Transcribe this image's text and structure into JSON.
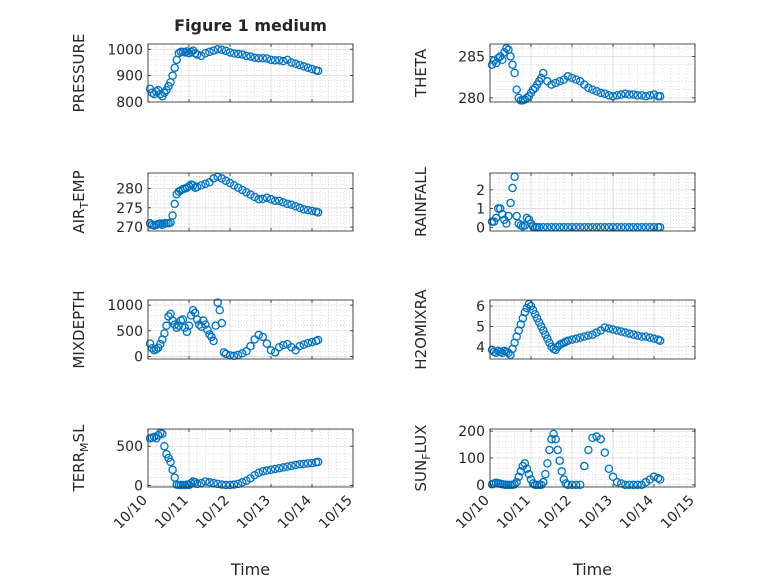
{
  "chart_data": [
    {
      "type": "scatter",
      "title": "Figure 1 medium",
      "ylabel": "PRESSURE",
      "xlabel": "",
      "xlim": [
        0,
        5
      ],
      "ylim": [
        800,
        1020
      ],
      "yticks": [
        800,
        900,
        1000
      ],
      "xticks": [
        0,
        1,
        2,
        3,
        4,
        5
      ],
      "grid": true,
      "minor_grid": true,
      "marker_color": "#0072BD",
      "x": [
        0.05,
        0.1,
        0.15,
        0.2,
        0.25,
        0.3,
        0.35,
        0.4,
        0.45,
        0.5,
        0.55,
        0.6,
        0.65,
        0.7,
        0.75,
        0.8,
        0.85,
        0.9,
        0.95,
        1.0,
        1.05,
        1.1,
        1.15,
        1.2,
        1.3,
        1.4,
        1.5,
        1.6,
        1.7,
        1.8,
        1.9,
        2.0,
        2.1,
        2.2,
        2.3,
        2.4,
        2.5,
        2.6,
        2.7,
        2.8,
        2.9,
        3.0,
        3.1,
        3.2,
        3.3,
        3.4,
        3.5,
        3.6,
        3.7,
        3.8,
        3.9,
        4.0,
        4.1,
        4.15
      ],
      "y": [
        850,
        835,
        830,
        840,
        845,
        830,
        822,
        835,
        845,
        860,
        875,
        900,
        930,
        960,
        985,
        990,
        990,
        988,
        992,
        985,
        990,
        995,
        985,
        980,
        975,
        985,
        990,
        995,
        1000,
        998,
        994,
        988,
        984,
        982,
        980,
        975,
        972,
        968,
        966,
        966,
        965,
        960,
        958,
        958,
        955,
        960,
        950,
        945,
        940,
        935,
        930,
        925,
        920,
        918
      ]
    },
    {
      "type": "scatter",
      "title": "",
      "ylabel": "THETA",
      "xlabel": "",
      "xlim": [
        0,
        5
      ],
      "ylim": [
        279.5,
        286.5
      ],
      "yticks": [
        280,
        285
      ],
      "xticks": [
        0,
        1,
        2,
        3,
        4,
        5
      ],
      "grid": true,
      "minor_grid": true,
      "marker_color": "#0072BD",
      "x": [
        0.05,
        0.1,
        0.15,
        0.2,
        0.25,
        0.3,
        0.35,
        0.4,
        0.45,
        0.5,
        0.55,
        0.6,
        0.65,
        0.7,
        0.75,
        0.8,
        0.85,
        0.9,
        0.95,
        1.0,
        1.05,
        1.1,
        1.15,
        1.2,
        1.25,
        1.3,
        1.4,
        1.5,
        1.6,
        1.7,
        1.8,
        1.9,
        2.0,
        2.1,
        2.2,
        2.3,
        2.4,
        2.5,
        2.6,
        2.7,
        2.8,
        2.9,
        3.0,
        3.1,
        3.2,
        3.3,
        3.4,
        3.5,
        3.6,
        3.7,
        3.8,
        3.9,
        4.0,
        4.1,
        4.15
      ],
      "y": [
        284,
        284.5,
        284.2,
        284.8,
        285,
        284.6,
        285.5,
        286,
        285.8,
        285,
        284,
        283,
        281,
        280,
        279.7,
        279.7,
        279.8,
        280,
        280.2,
        280.6,
        281,
        281.2,
        281.6,
        282,
        282.4,
        283,
        282,
        281.6,
        281.8,
        282,
        282.2,
        282.6,
        282.4,
        282.2,
        282,
        281.6,
        281.2,
        281,
        280.8,
        280.6,
        280.5,
        280.3,
        280.2,
        280.3,
        280.4,
        280.5,
        280.4,
        280.4,
        280.3,
        280.3,
        280.2,
        280.3,
        280.4,
        280.2,
        280.2
      ]
    },
    {
      "type": "scatter",
      "title": "",
      "ylabel": "AIR_TEMP",
      "xlabel": "",
      "xlim": [
        0,
        5
      ],
      "ylim": [
        269,
        284
      ],
      "yticks": [
        270,
        275,
        280
      ],
      "xticks": [
        0,
        1,
        2,
        3,
        4,
        5
      ],
      "grid": true,
      "minor_grid": true,
      "marker_color": "#0072BD",
      "x": [
        0.05,
        0.1,
        0.15,
        0.2,
        0.25,
        0.3,
        0.35,
        0.4,
        0.45,
        0.5,
        0.55,
        0.6,
        0.65,
        0.7,
        0.75,
        0.8,
        0.85,
        0.9,
        0.95,
        1.0,
        1.05,
        1.1,
        1.15,
        1.2,
        1.3,
        1.4,
        1.5,
        1.6,
        1.7,
        1.8,
        1.9,
        2.0,
        2.1,
        2.2,
        2.3,
        2.4,
        2.5,
        2.6,
        2.7,
        2.8,
        2.9,
        3.0,
        3.1,
        3.2,
        3.3,
        3.4,
        3.5,
        3.6,
        3.7,
        3.8,
        3.9,
        4.0,
        4.1,
        4.15
      ],
      "y": [
        271,
        270.6,
        270.4,
        270.6,
        270.8,
        270.9,
        270.6,
        271,
        271,
        271,
        271.2,
        273,
        276,
        278.5,
        279.2,
        279.5,
        279.8,
        280,
        280.2,
        280.6,
        281,
        280.8,
        280.2,
        280.4,
        280.8,
        281.2,
        281.6,
        282.6,
        283,
        282.6,
        282,
        281.4,
        280.8,
        280.2,
        279.6,
        279,
        278.4,
        277.8,
        277.2,
        277.3,
        277.6,
        277.2,
        276.8,
        276.8,
        276.4,
        276,
        275.8,
        275.4,
        275,
        274.6,
        274.4,
        274.2,
        274,
        273.8
      ]
    },
    {
      "type": "scatter",
      "title": "",
      "ylabel": "RAINFALL",
      "xlabel": "",
      "xlim": [
        0,
        5
      ],
      "ylim": [
        -0.2,
        2.9
      ],
      "yticks": [
        0,
        1,
        2
      ],
      "xticks": [
        0,
        1,
        2,
        3,
        4,
        5
      ],
      "grid": true,
      "minor_grid": true,
      "marker_color": "#0072BD",
      "x": [
        0.05,
        0.1,
        0.15,
        0.2,
        0.25,
        0.3,
        0.35,
        0.4,
        0.45,
        0.5,
        0.55,
        0.6,
        0.65,
        0.7,
        0.75,
        0.8,
        0.85,
        0.9,
        0.95,
        1.0,
        1.05,
        1.1,
        1.15,
        1.2,
        1.3,
        1.4,
        1.5,
        1.6,
        1.7,
        1.8,
        1.9,
        2.0,
        2.1,
        2.2,
        2.3,
        2.4,
        2.5,
        2.6,
        2.7,
        2.8,
        2.9,
        3.0,
        3.1,
        3.2,
        3.3,
        3.4,
        3.5,
        3.6,
        3.7,
        3.8,
        3.9,
        4.0,
        4.1,
        4.15
      ],
      "y": [
        0.3,
        0.3,
        0.5,
        1.0,
        1.0,
        0.7,
        0.4,
        0.2,
        0.6,
        1.3,
        2.1,
        2.7,
        0.6,
        0.2,
        0.1,
        0.05,
        0.1,
        0.5,
        0.4,
        0.2,
        0.05,
        0,
        0,
        0,
        0,
        0,
        0,
        0,
        0,
        0,
        0,
        0,
        0,
        0,
        0,
        0,
        0,
        0,
        0,
        0,
        0,
        0,
        0,
        0,
        0,
        0,
        0,
        0,
        0,
        0,
        0,
        0,
        0,
        0
      ]
    },
    {
      "type": "scatter",
      "title": "",
      "ylabel": "MIXDEPTH",
      "xlabel": "",
      "xlim": [
        0,
        5
      ],
      "ylim": [
        -50,
        1100
      ],
      "yticks": [
        0,
        500,
        1000
      ],
      "xticks": [
        0,
        1,
        2,
        3,
        4,
        5
      ],
      "grid": true,
      "minor_grid": true,
      "marker_color": "#0072BD",
      "x": [
        0.05,
        0.1,
        0.15,
        0.2,
        0.25,
        0.3,
        0.35,
        0.4,
        0.45,
        0.5,
        0.55,
        0.6,
        0.65,
        0.7,
        0.75,
        0.8,
        0.85,
        0.9,
        0.95,
        1.0,
        1.05,
        1.1,
        1.15,
        1.2,
        1.25,
        1.3,
        1.35,
        1.4,
        1.45,
        1.5,
        1.55,
        1.6,
        1.65,
        1.7,
        1.75,
        1.8,
        1.85,
        1.9,
        2.0,
        2.1,
        2.2,
        2.3,
        2.4,
        2.5,
        2.6,
        2.7,
        2.8,
        2.9,
        3.0,
        3.1,
        3.2,
        3.3,
        3.4,
        3.5,
        3.6,
        3.7,
        3.8,
        3.9,
        4.0,
        4.1,
        4.15
      ],
      "y": [
        250,
        160,
        120,
        140,
        170,
        240,
        330,
        450,
        600,
        780,
        830,
        700,
        620,
        560,
        600,
        700,
        720,
        560,
        480,
        600,
        800,
        900,
        850,
        720,
        620,
        580,
        700,
        620,
        520,
        430,
        380,
        300,
        600,
        1050,
        900,
        650,
        80,
        50,
        20,
        10,
        30,
        60,
        100,
        200,
        330,
        420,
        380,
        250,
        120,
        80,
        180,
        220,
        240,
        180,
        120,
        200,
        230,
        260,
        280,
        300,
        320
      ]
    },
    {
      "type": "scatter",
      "title": "",
      "ylabel": "H2OMIXRA",
      "xlabel": "",
      "xlim": [
        0,
        5
      ],
      "ylim": [
        3.4,
        6.3
      ],
      "yticks": [
        4,
        5,
        6
      ],
      "xticks": [
        0,
        1,
        2,
        3,
        4,
        5
      ],
      "grid": true,
      "minor_grid": true,
      "marker_color": "#0072BD",
      "x": [
        0.05,
        0.1,
        0.15,
        0.2,
        0.25,
        0.3,
        0.35,
        0.4,
        0.45,
        0.5,
        0.55,
        0.6,
        0.65,
        0.7,
        0.75,
        0.8,
        0.85,
        0.9,
        0.95,
        1.0,
        1.05,
        1.1,
        1.15,
        1.2,
        1.25,
        1.3,
        1.35,
        1.4,
        1.45,
        1.5,
        1.55,
        1.6,
        1.65,
        1.7,
        1.75,
        1.8,
        1.85,
        1.9,
        2.0,
        2.1,
        2.2,
        2.3,
        2.4,
        2.5,
        2.6,
        2.7,
        2.8,
        2.9,
        3.0,
        3.1,
        3.2,
        3.3,
        3.4,
        3.5,
        3.6,
        3.7,
        3.8,
        3.9,
        4.0,
        4.1,
        4.15
      ],
      "y": [
        3.85,
        3.75,
        3.7,
        3.8,
        3.75,
        3.7,
        3.8,
        3.75,
        3.7,
        3.6,
        3.9,
        4.2,
        4.5,
        4.8,
        5.1,
        5.4,
        5.7,
        5.9,
        6.1,
        6.0,
        5.8,
        5.6,
        5.4,
        5.2,
        5.0,
        4.8,
        4.6,
        4.4,
        4.2,
        4.0,
        3.9,
        3.85,
        4.0,
        4.1,
        4.15,
        4.2,
        4.25,
        4.3,
        4.35,
        4.4,
        4.45,
        4.5,
        4.55,
        4.6,
        4.7,
        4.8,
        4.95,
        4.9,
        4.85,
        4.8,
        4.75,
        4.7,
        4.65,
        4.6,
        4.55,
        4.5,
        4.5,
        4.45,
        4.4,
        4.35,
        4.3
      ]
    },
    {
      "type": "scatter",
      "title": "",
      "ylabel": "TERR_MSL",
      "xlabel": "Time",
      "xlim": [
        0,
        5
      ],
      "ylim": [
        -20,
        720
      ],
      "yticks": [
        0,
        500
      ],
      "xticks": [
        0,
        1,
        2,
        3,
        4,
        5
      ],
      "xticklabels": [
        "10/10",
        "10/11",
        "10/12",
        "10/13",
        "10/14",
        "10/15"
      ],
      "grid": true,
      "minor_grid": true,
      "marker_color": "#0072BD",
      "x": [
        0.05,
        0.1,
        0.15,
        0.2,
        0.25,
        0.3,
        0.35,
        0.4,
        0.45,
        0.5,
        0.55,
        0.6,
        0.65,
        0.7,
        0.75,
        0.8,
        0.85,
        0.9,
        0.95,
        1.0,
        1.05,
        1.1,
        1.15,
        1.2,
        1.3,
        1.4,
        1.5,
        1.6,
        1.7,
        1.8,
        1.9,
        2.0,
        2.1,
        2.2,
        2.3,
        2.4,
        2.5,
        2.6,
        2.7,
        2.8,
        2.9,
        3.0,
        3.1,
        3.2,
        3.3,
        3.4,
        3.5,
        3.6,
        3.7,
        3.8,
        3.9,
        4.0,
        4.1,
        4.15
      ],
      "y": [
        600,
        610,
        620,
        600,
        640,
        670,
        660,
        500,
        400,
        350,
        300,
        200,
        100,
        10,
        5,
        5,
        5,
        5,
        10,
        5,
        30,
        50,
        40,
        20,
        30,
        50,
        40,
        30,
        20,
        10,
        5,
        5,
        10,
        20,
        40,
        60,
        90,
        130,
        160,
        180,
        190,
        200,
        210,
        220,
        230,
        240,
        250,
        260,
        270,
        275,
        280,
        285,
        295,
        300
      ]
    },
    {
      "type": "scatter",
      "title": "",
      "ylabel": "SUN_FLUX",
      "xlabel": "Time",
      "xlim": [
        0,
        5
      ],
      "ylim": [
        -8,
        208
      ],
      "yticks": [
        0,
        100,
        200
      ],
      "xticks": [
        0,
        1,
        2,
        3,
        4,
        5
      ],
      "xticklabels": [
        "10/10",
        "10/11",
        "10/12",
        "10/13",
        "10/14",
        "10/15"
      ],
      "grid": true,
      "minor_grid": true,
      "marker_color": "#0072BD",
      "x": [
        0.05,
        0.1,
        0.15,
        0.2,
        0.25,
        0.3,
        0.35,
        0.4,
        0.45,
        0.5,
        0.55,
        0.6,
        0.65,
        0.7,
        0.75,
        0.8,
        0.85,
        0.9,
        0.95,
        1.0,
        1.05,
        1.1,
        1.15,
        1.2,
        1.25,
        1.3,
        1.35,
        1.4,
        1.45,
        1.5,
        1.55,
        1.6,
        1.65,
        1.7,
        1.75,
        1.8,
        1.85,
        1.9,
        2.0,
        2.1,
        2.2,
        2.3,
        2.4,
        2.5,
        2.6,
        2.7,
        2.8,
        2.9,
        3.0,
        3.1,
        3.2,
        3.3,
        3.4,
        3.5,
        3.6,
        3.7,
        3.8,
        3.9,
        4.0,
        4.1,
        4.15
      ],
      "y": [
        2,
        5,
        8,
        6,
        4,
        2,
        1,
        0,
        0,
        0,
        0,
        2,
        10,
        30,
        50,
        70,
        80,
        60,
        40,
        20,
        5,
        0,
        0,
        0,
        0,
        10,
        40,
        80,
        130,
        170,
        190,
        170,
        130,
        90,
        50,
        20,
        5,
        0,
        0,
        0,
        0,
        70,
        130,
        175,
        180,
        170,
        120,
        60,
        30,
        10,
        5,
        0,
        0,
        0,
        0,
        0,
        10,
        20,
        30,
        25,
        20
      ]
    }
  ]
}
